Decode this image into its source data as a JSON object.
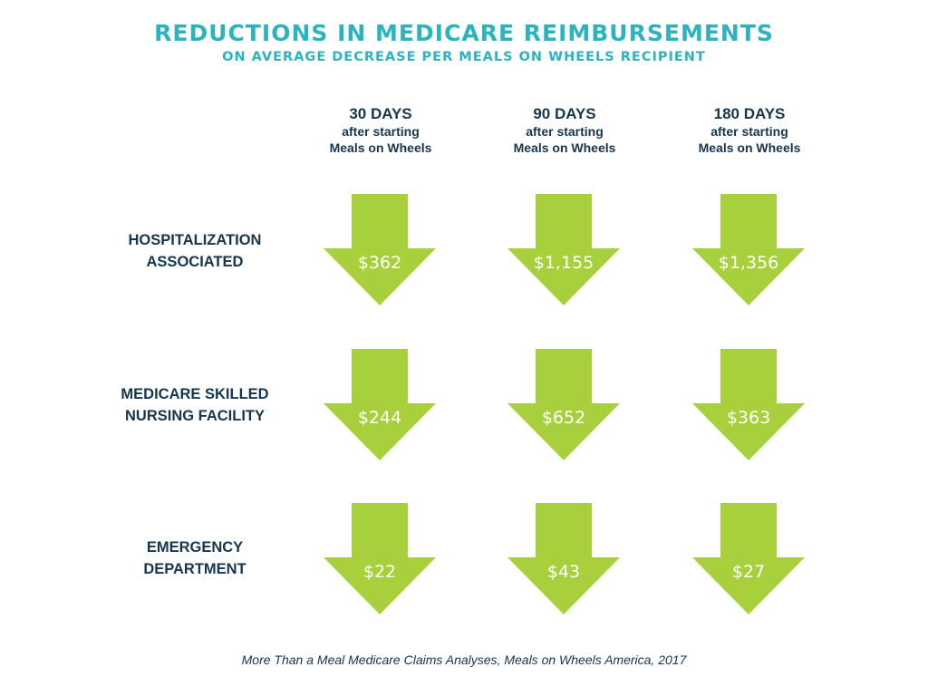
{
  "chart_data": {
    "type": "table",
    "title": "REDUCTIONS IN MEDICARE REIMBURSEMENTS",
    "subtitle": "ON AVERAGE DECREASE PER MEALS ON WHEELS RECIPIENT",
    "columns": [
      {
        "days": "30 DAYS",
        "line1": "after starting",
        "line2": "Meals on Wheels"
      },
      {
        "days": "90 DAYS",
        "line1": "after starting",
        "line2": "Meals on Wheels"
      },
      {
        "days": "180 DAYS",
        "line1": "after starting",
        "line2": "Meals on Wheels"
      }
    ],
    "rows": [
      {
        "label_lines": [
          "HOSPITALIZATION",
          "ASSOCIATED"
        ],
        "values": [
          "$362",
          "$1,155",
          "$1,356"
        ]
      },
      {
        "label_lines": [
          "MEDICARE SKILLED",
          "NURSING FACILITY"
        ],
        "values": [
          "$244",
          "$652",
          "$363"
        ]
      },
      {
        "label_lines": [
          "EMERGENCY",
          "DEPARTMENT"
        ],
        "values": [
          "$22",
          "$43",
          "$27"
        ]
      }
    ],
    "source": "More Than a Meal Medicare Claims Analyses, Meals on Wheels America, 2017",
    "colors": {
      "title": "#2bb3c0",
      "labels": "#16354f",
      "arrow": "#a8cf3c",
      "arrow_text": "#ffffff"
    }
  }
}
